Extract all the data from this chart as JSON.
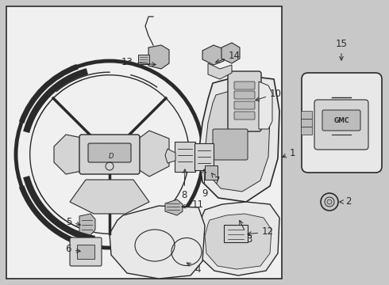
{
  "bg_color": "#c8c8c8",
  "panel_bg": "#e0e0e0",
  "line_color": "#2a2a2a",
  "fill_light": "#e8e8e8",
  "fill_mid": "#d4d4d4",
  "fill_dark": "#bcbcbc",
  "white_bg": "#f0f0f0",
  "label_fs": 8.5,
  "lw_main": 1.0,
  "lw_thin": 0.6,
  "lw_thick": 1.8
}
